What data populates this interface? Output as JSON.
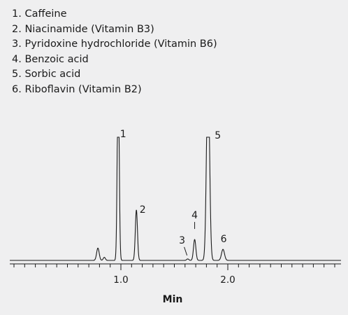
{
  "legend": [
    "1. Caffeine",
    "2. Niacinamide (Vitamin B3)",
    "3. Pyridoxine hydrochloride (Vitamin B6)",
    "4. Benzoic acid",
    "5. Sorbic acid",
    "6. Riboflavin (Vitamin B2)"
  ],
  "chart_data": {
    "type": "line",
    "xlabel": "Min",
    "ylabel": "",
    "title": "",
    "xlim": [
      0.0,
      3.0
    ],
    "ylim": [
      0,
      100
    ],
    "x_ticks_major": [
      1.0,
      2.0
    ],
    "x_tick_labels": [
      "1.0",
      "2.0"
    ],
    "x_tick_minor_step": 0.1,
    "grid": false,
    "baseline": 0,
    "line_color": "#1a1a1a",
    "peaks": [
      {
        "label": "",
        "rt": 0.785,
        "height": 10,
        "width": 0.012
      },
      {
        "label": "",
        "rt": 0.845,
        "height": 2.5,
        "width": 0.01
      },
      {
        "label": "1",
        "rt": 0.975,
        "height": 100,
        "width": 0.009,
        "flat_top": true
      },
      {
        "label": "2",
        "rt": 1.145,
        "height": 41,
        "width": 0.01
      },
      {
        "label": "3",
        "rt": 1.625,
        "height": 1.2,
        "width": 0.01
      },
      {
        "label": "4",
        "rt": 1.69,
        "height": 17,
        "width": 0.011
      },
      {
        "label": "5",
        "rt": 1.815,
        "height": 100,
        "width": 0.014,
        "flat_top": true
      },
      {
        "label": "6",
        "rt": 1.955,
        "height": 9,
        "width": 0.014
      }
    ]
  }
}
